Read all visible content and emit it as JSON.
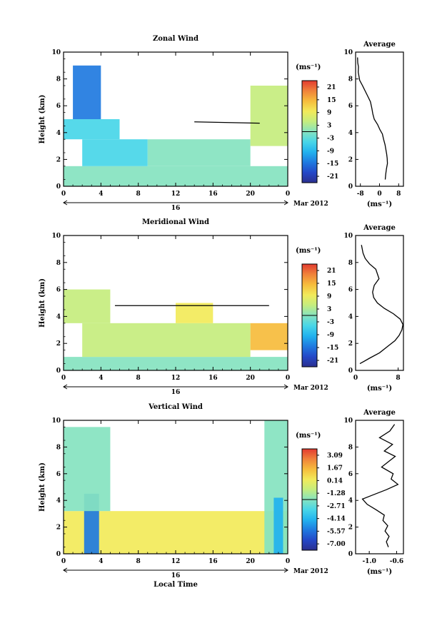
{
  "charts": [
    {
      "key": "zonal",
      "title": "Zonal Wind",
      "cb_label": "(ms⁻¹)",
      "cb_ticks": [
        "21",
        "15",
        "9",
        "3",
        "-3",
        "-9",
        "-15",
        "-21"
      ],
      "cb_range": [
        -24,
        24
      ],
      "avg_title": "Average",
      "avg_xticks": [
        "-8",
        "0",
        "8"
      ],
      "avg_xlim": [
        -10,
        10
      ],
      "avg_xunit": "(ms⁻¹)"
    },
    {
      "key": "meridional",
      "title": "Meridional Wind",
      "cb_label": "(ms⁻¹)",
      "cb_ticks": [
        "21",
        "15",
        "9",
        "3",
        "-3",
        "-9",
        "-15",
        "-21"
      ],
      "cb_range": [
        -24,
        24
      ],
      "avg_title": "Average",
      "avg_xticks": [
        "0",
        "8"
      ],
      "avg_xlim": [
        0,
        9
      ],
      "avg_xunit": "(ms⁻¹)"
    },
    {
      "key": "vertical",
      "title": "Vertical Wind",
      "cb_label": "(ms⁻¹)",
      "cb_ticks": [
        "3.09",
        "1.67",
        "0.14",
        "-1.28",
        "-2.71",
        "-4.14",
        "-5.57",
        "-7.00"
      ],
      "cb_range": [
        -7.7,
        3.8
      ],
      "avg_title": "Average",
      "avg_xticks": [
        "-1.0",
        "-0.6"
      ],
      "avg_xlim": [
        -1.2,
        -0.5
      ],
      "avg_xunit": "(ms⁻¹)"
    }
  ],
  "axes": {
    "ylabel": "Height (km)",
    "yticks": [
      "0",
      "2",
      "4",
      "6",
      "8",
      "10"
    ],
    "xticks": [
      "0",
      "4",
      "8",
      "12",
      "16",
      "20",
      "0"
    ],
    "date_label": "16",
    "month_label": "Mar 2012",
    "xlabel": "Local Time"
  },
  "colors": {
    "scale": [
      "#2b2f8f",
      "#2448c8",
      "#1f7ae0",
      "#22b2ee",
      "#48d6e8",
      "#86e3c0",
      "#c5ed7e",
      "#f2ea5a",
      "#f6bc3c",
      "#f0823a",
      "#e23a30"
    ]
  },
  "chart_data": [
    {
      "type": "heatmap",
      "title": "Zonal Wind",
      "xlabel": "",
      "ylabel": "Height (km)",
      "x": "local time, 16 Mar 2012, 0 to 24 h",
      "xlim": [
        0,
        24
      ],
      "ylim": [
        0,
        10
      ],
      "colorbar_ticks": [
        21,
        15,
        9,
        3,
        -3,
        -9,
        -15,
        -21
      ],
      "regions": [
        {
          "x": [
            0,
            24
          ],
          "y": [
            0,
            1.5
          ],
          "value": -2
        },
        {
          "x": [
            2,
            9
          ],
          "y": [
            1.5,
            3.5
          ],
          "value": -3
        },
        {
          "x": [
            9,
            20
          ],
          "y": [
            1.5,
            3.5
          ],
          "value": 1
        },
        {
          "x": [
            0,
            6
          ],
          "y": [
            3.5,
            5
          ],
          "value": -6
        },
        {
          "x": [
            1,
            4
          ],
          "y": [
            5,
            9
          ],
          "value": -14
        },
        {
          "x": [
            20,
            24
          ],
          "y": [
            3,
            7.5
          ],
          "value": 4
        }
      ],
      "line": {
        "x": [
          14,
          21
        ],
        "y": [
          4.8,
          4.7
        ]
      }
    },
    {
      "type": "line",
      "title": "Average",
      "xlabel": "(ms⁻¹)",
      "xlim": [
        -10,
        10
      ],
      "ylim": [
        0,
        10
      ],
      "x": [
        2.4,
        2.6,
        2.9,
        3.3,
        3.2,
        3.0,
        2.6,
        2.3,
        1.7,
        1.2,
        0.2,
        -0.8,
        -2.2,
        -2.8,
        -3.2,
        -3.8,
        -4.9,
        -6.0,
        -7.1,
        -8.3,
        -8.6,
        -8.9,
        -8.8,
        -9.1,
        -9.2
      ],
      "y": [
        0.5,
        0.9,
        1.3,
        1.7,
        2.1,
        2.4,
        2.8,
        3.1,
        3.5,
        3.9,
        4.2,
        4.6,
        5.0,
        5.4,
        5.8,
        6.3,
        6.7,
        7.1,
        7.5,
        7.9,
        8.2,
        8.5,
        8.9,
        9.2,
        9.6
      ]
    },
    {
      "type": "heatmap",
      "title": "Meridional Wind",
      "xlabel": "",
      "ylabel": "Height (km)",
      "xlim": [
        0,
        24
      ],
      "ylim": [
        0,
        10
      ],
      "colorbar_ticks": [
        21,
        15,
        9,
        3,
        -3,
        -9,
        -15,
        -21
      ],
      "regions": [
        {
          "x": [
            0,
            24
          ],
          "y": [
            0,
            1
          ],
          "value": 1
        },
        {
          "x": [
            2,
            20
          ],
          "y": [
            1,
            3.5
          ],
          "value": 6
        },
        {
          "x": [
            20,
            24
          ],
          "y": [
            1.5,
            3.5
          ],
          "value": 12
        },
        {
          "x": [
            0,
            5
          ],
          "y": [
            3.5,
            6
          ],
          "value": 3
        },
        {
          "x": [
            12,
            16
          ],
          "y": [
            3.5,
            5
          ],
          "value": 7
        }
      ],
      "line": {
        "x": [
          5.5,
          22
        ],
        "y": [
          4.8,
          4.8
        ]
      }
    },
    {
      "type": "line",
      "title": "Average",
      "xlabel": "(ms⁻¹)",
      "xlim": [
        0,
        9
      ],
      "ylim": [
        0,
        10
      ],
      "x": [
        0.8,
        2.6,
        4.5,
        6.1,
        7.4,
        8.2,
        8.7,
        8.9,
        8.4,
        7.1,
        5.4,
        4.1,
        3.4,
        3.2,
        3.5,
        4.4,
        3.8,
        2.6,
        1.8,
        1.4,
        1.1
      ],
      "y": [
        0.5,
        0.9,
        1.3,
        1.8,
        2.2,
        2.6,
        3.0,
        3.4,
        3.8,
        4.2,
        4.6,
        5.0,
        5.4,
        5.8,
        6.3,
        6.8,
        7.5,
        7.9,
        8.3,
        8.7,
        9.3
      ]
    },
    {
      "type": "heatmap",
      "title": "Vertical Wind",
      "xlabel": "Local Time",
      "ylabel": "Height (km)",
      "xlim": [
        0,
        24
      ],
      "ylim": [
        0,
        10
      ],
      "colorbar_ticks": [
        3.09,
        1.67,
        0.14,
        -1.28,
        -2.71,
        -4.14,
        -5.57,
        -7.0
      ],
      "regions": [
        {
          "x": [
            0,
            24
          ],
          "y": [
            0,
            3.2
          ],
          "value": 0.14
        },
        {
          "x": [
            2.2,
            3.8
          ],
          "y": [
            0,
            4.5
          ],
          "value": -5.5
        },
        {
          "x": [
            0,
            5
          ],
          "y": [
            3.2,
            9.5
          ],
          "value": -1.5
        },
        {
          "x": [
            21.5,
            24
          ],
          "y": [
            0,
            10
          ],
          "value": -1.5
        },
        {
          "x": [
            22.5,
            23.5
          ],
          "y": [
            0,
            4.2
          ],
          "value": -4.5
        }
      ]
    },
    {
      "type": "line",
      "title": "Average",
      "xlabel": "(ms⁻¹)",
      "xlim": [
        -1.2,
        -0.5
      ],
      "ylim": [
        0,
        10
      ],
      "x": [
        -0.72,
        -0.75,
        -0.71,
        -0.77,
        -0.73,
        -0.8,
        -0.78,
        -0.9,
        -1.03,
        -1.1,
        -0.95,
        -0.75,
        -0.58,
        -0.68,
        -0.65,
        -0.82,
        -0.72,
        -0.62,
        -0.78,
        -0.66,
        -0.85,
        -0.7,
        -0.63
      ],
      "y": [
        0.5,
        0.9,
        1.3,
        1.7,
        2.1,
        2.5,
        2.9,
        3.3,
        3.7,
        4.1,
        4.4,
        4.8,
        5.2,
        5.6,
        6.0,
        6.5,
        6.9,
        7.3,
        7.7,
        8.2,
        8.7,
        9.2,
        9.7
      ]
    }
  ]
}
